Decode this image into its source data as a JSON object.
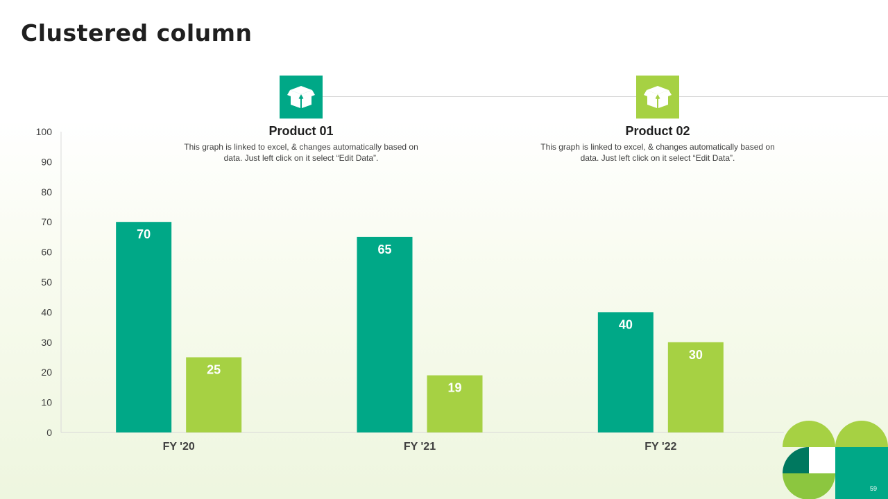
{
  "slide": {
    "title": "Clustered column",
    "page_number": "59"
  },
  "colors": {
    "product_01": "#00a887",
    "product_02": "#a6d143",
    "deco_dark": "#00785f"
  },
  "products": [
    {
      "name": "Product 01",
      "icon": "open-box-icon",
      "description": "This graph is linked to excel, & changes automatically based on data. Just left click on it select “Edit Data”."
    },
    {
      "name": "Product 02",
      "icon": "open-box-icon",
      "description": "This graph is linked to excel, & changes automatically based on data. Just left click on it select “Edit Data”."
    }
  ],
  "chart_data": {
    "type": "bar",
    "categories": [
      "FY '20",
      "FY '21",
      "FY '22"
    ],
    "series": [
      {
        "name": "Product 01",
        "values": [
          70,
          65,
          40
        ]
      },
      {
        "name": "Product 02",
        "values": [
          25,
          19,
          30
        ]
      }
    ],
    "ylim": [
      0,
      100
    ],
    "yticks": [
      0,
      10,
      20,
      30,
      40,
      50,
      60,
      70,
      80,
      90,
      100
    ],
    "data_labels": true,
    "grid": false
  }
}
